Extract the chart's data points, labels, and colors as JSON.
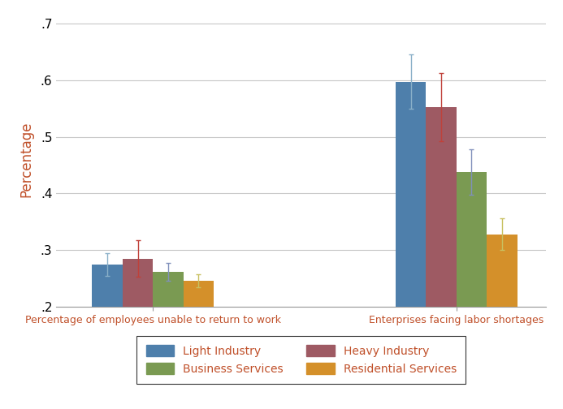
{
  "groups": [
    "Percentage of employees unable to return to work",
    "Enterprises facing labor shortages"
  ],
  "series": [
    "Light Industry",
    "Heavy Industry",
    "Business Services",
    "Residential Services"
  ],
  "colors": [
    "#4e7fab",
    "#9e5a63",
    "#7a9a52",
    "#d4902a"
  ],
  "error_colors": [
    "#8ab0c8",
    "#c0413a",
    "#8090bb",
    "#c8c060"
  ],
  "values": [
    [
      0.274,
      0.285,
      0.262,
      0.246
    ],
    [
      0.597,
      0.553,
      0.438,
      0.328
    ]
  ],
  "errors": [
    [
      0.02,
      0.032,
      0.016,
      0.012
    ],
    [
      0.048,
      0.06,
      0.04,
      0.028
    ]
  ],
  "ylabel": "Percentage",
  "ylim": [
    0.2,
    0.72
  ],
  "yticks": [
    0.2,
    0.3,
    0.4,
    0.5,
    0.6,
    0.7
  ],
  "ytick_labels": [
    ".2",
    ".3",
    ".4",
    ".5",
    ".6",
    ".7"
  ],
  "bar_width": 0.22,
  "legend_text_color": "#c0502a",
  "axis_label_color": "#c0502a",
  "grid_color": "#c8c8c8",
  "legend_order": [
    0,
    2,
    1,
    3
  ]
}
